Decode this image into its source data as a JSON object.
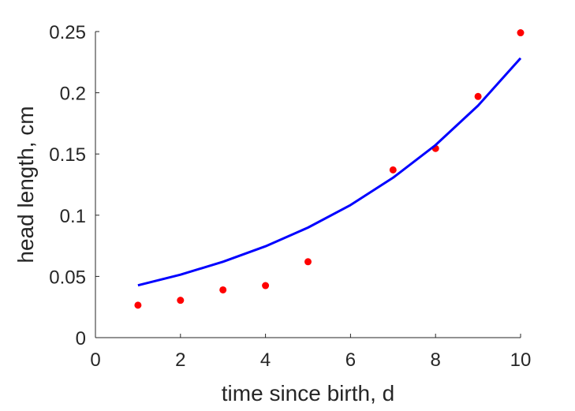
{
  "chart_data": {
    "type": "scatter",
    "title": "",
    "xlabel": "time since birth, d",
    "ylabel": "head length, cm",
    "xlim": [
      0,
      10
    ],
    "ylim": [
      0,
      0.25
    ],
    "xticks": [
      0,
      2,
      4,
      6,
      8,
      10
    ],
    "xtick_labels": [
      "0",
      "2",
      "4",
      "6",
      "8",
      "10"
    ],
    "yticks": [
      0,
      0.05,
      0.1,
      0.15,
      0.2,
      0.25
    ],
    "ytick_labels": [
      "0",
      "0.05",
      "0.1",
      "0.15",
      "0.2",
      "0.25"
    ],
    "grid": false,
    "box": false,
    "series": [
      {
        "type": "scatter",
        "color": "#ff0000",
        "x": [
          1,
          2,
          3,
          4,
          5,
          7,
          8,
          9,
          10
        ],
        "y": [
          0.0265,
          0.0305,
          0.039,
          0.0425,
          0.062,
          0.137,
          0.1545,
          0.197,
          0.249
        ]
      },
      {
        "type": "line",
        "color": "#0000ff",
        "x": [
          1,
          2,
          3,
          4,
          5,
          6,
          7,
          8,
          9,
          10
        ],
        "y": [
          0.0427,
          0.0514,
          0.062,
          0.0746,
          0.0899,
          0.1083,
          0.1306,
          0.1573,
          0.1895,
          0.2283
        ]
      }
    ]
  }
}
